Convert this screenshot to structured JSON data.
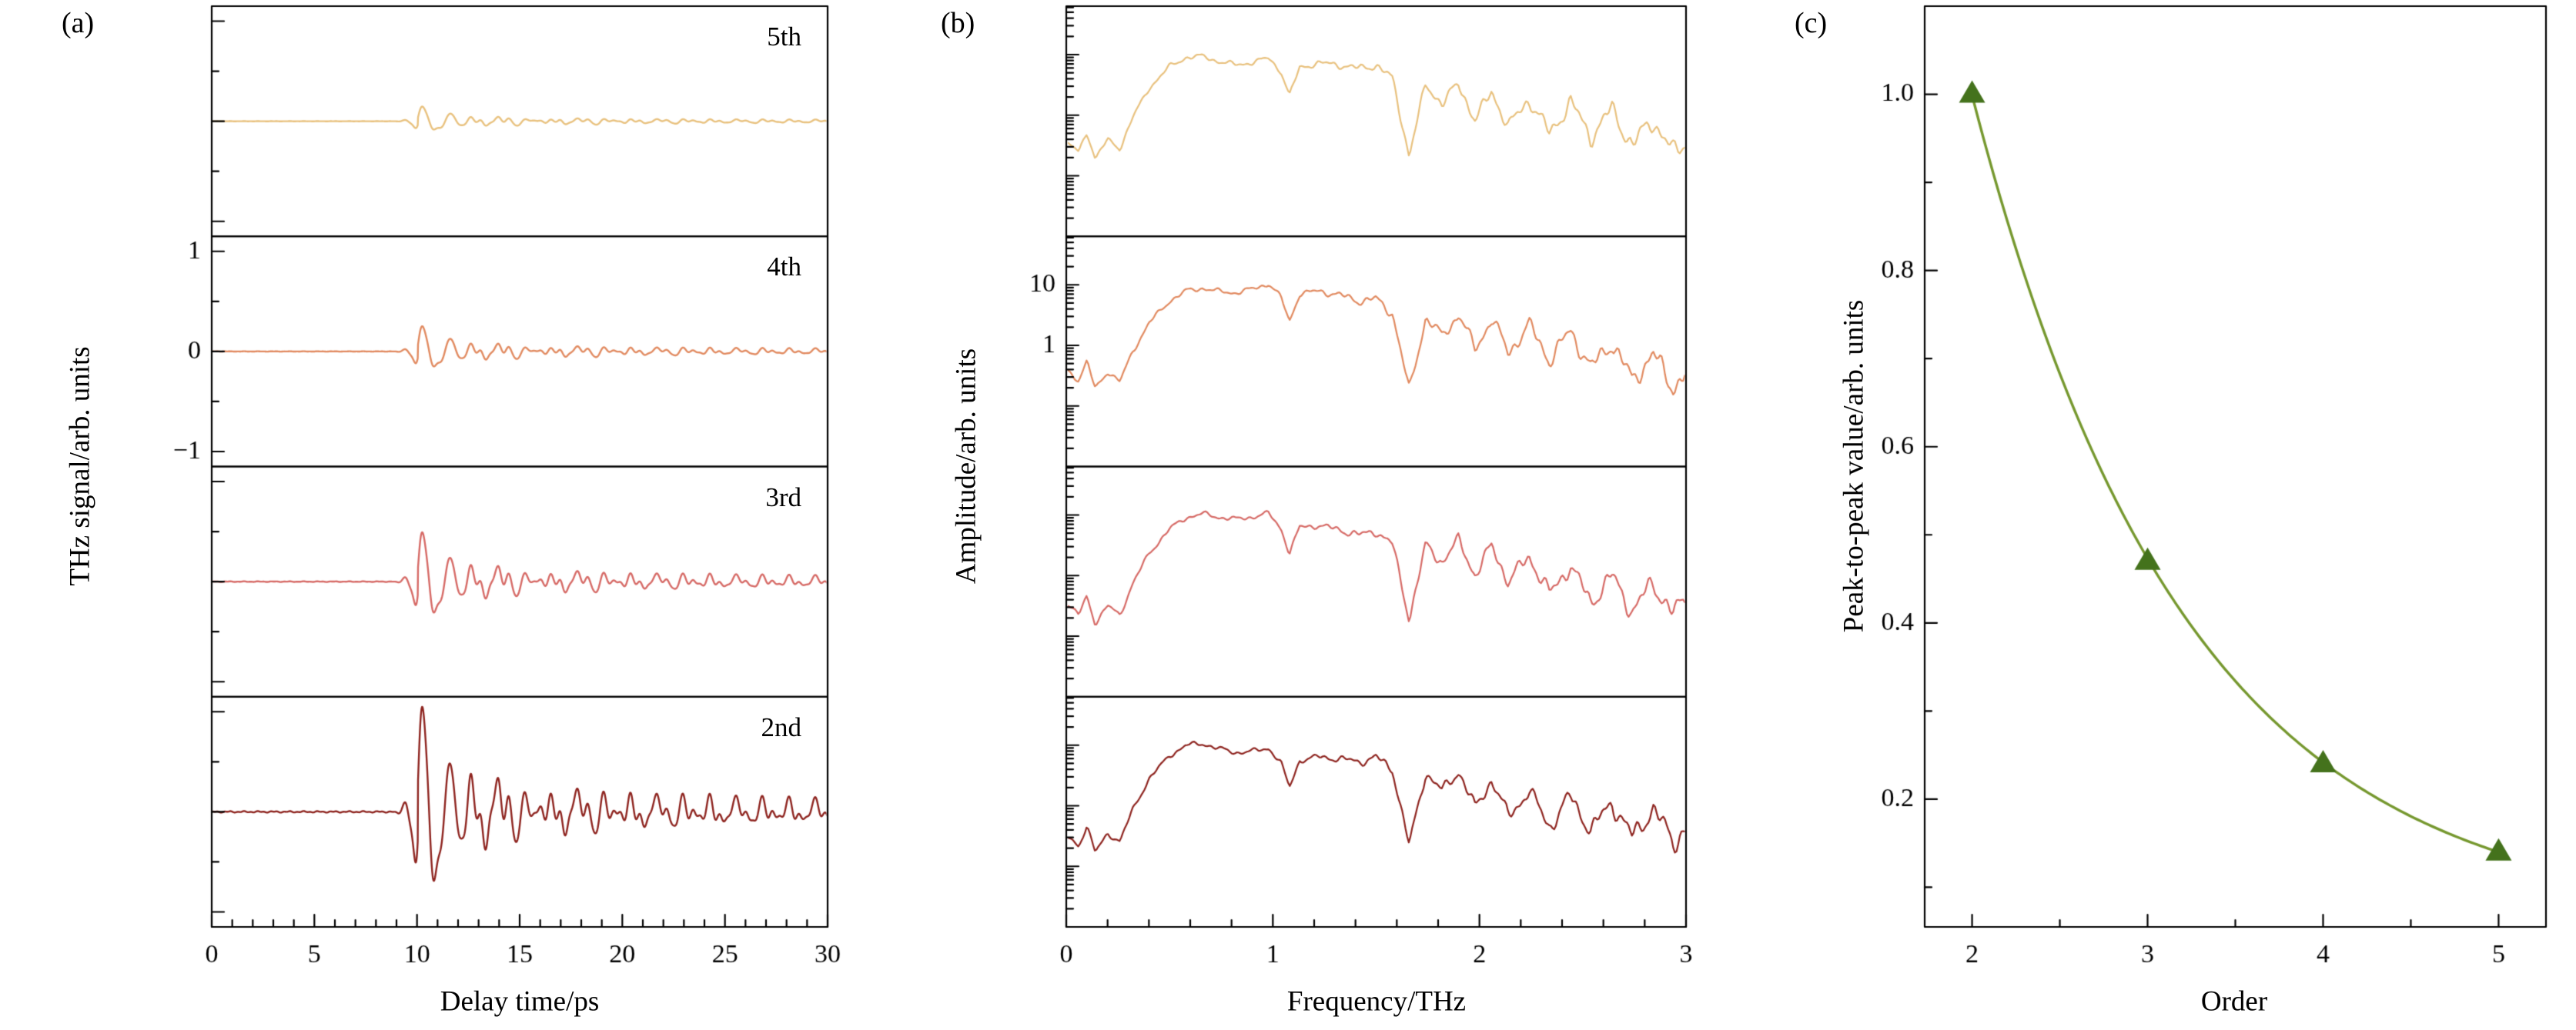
{
  "figure": {
    "background": "#ffffff",
    "panels": [
      {
        "letter": "(a)"
      },
      {
        "letter": "(b)"
      },
      {
        "letter": "(c)"
      }
    ]
  },
  "chart_data": [
    {
      "id": "a",
      "type": "line",
      "xlabel": "Delay time/ps",
      "ylabel": "THz signal/arb. units",
      "xlim": [
        0,
        30
      ],
      "xticks": [
        0,
        5,
        10,
        15,
        20,
        25,
        30
      ],
      "xtick_labels": [
        "0",
        "5",
        "10",
        "15",
        "20",
        "25",
        "30"
      ],
      "x_minor_step": 1,
      "ylim": [
        -1.15,
        1.15
      ],
      "yticks": [
        1,
        0,
        -1
      ],
      "ytick_labels": [
        "1",
        "0",
        "−1"
      ],
      "y_minor_step": 0.5,
      "grid": false,
      "burst_onset_ps": 9.5,
      "carrier_freq_THz": 1.1,
      "subplots": [
        {
          "label": "5th",
          "color": "#e8c17e",
          "peak_to_peak": 0.14
        },
        {
          "label": "4th",
          "color": "#e18a60",
          "peak_to_peak": 0.24
        },
        {
          "label": "3rd",
          "color": "#d66a66",
          "peak_to_peak": 0.47
        },
        {
          "label": "2nd",
          "color": "#8e241f",
          "peak_to_peak": 1.0
        }
      ]
    },
    {
      "id": "b",
      "type": "line",
      "yscale": "log",
      "xlabel": "Frequency/THz",
      "ylabel": "Amplitude/arb. units",
      "xlim": [
        0,
        3
      ],
      "xticks": [
        0,
        1,
        2,
        3
      ],
      "xtick_labels": [
        "0",
        "1",
        "2",
        "3"
      ],
      "x_minor_step": 0.2,
      "ytick_values": [
        10,
        1
      ],
      "ytick_labels": [
        "10",
        "1"
      ],
      "log_top_exponent": 1.8,
      "log_bottom_exponent": -2.0,
      "grid": false,
      "envelope_log10": [
        [
          0.0,
          -0.45
        ],
        [
          0.06,
          -0.62
        ],
        [
          0.1,
          -0.3
        ],
        [
          0.14,
          -0.75
        ],
        [
          0.2,
          -0.45
        ],
        [
          0.26,
          -0.6
        ],
        [
          0.32,
          -0.1
        ],
        [
          0.4,
          0.4
        ],
        [
          0.5,
          0.78
        ],
        [
          0.58,
          0.95
        ],
        [
          0.66,
          0.99
        ],
        [
          0.74,
          0.92
        ],
        [
          0.82,
          0.88
        ],
        [
          0.9,
          0.92
        ],
        [
          0.98,
          0.99
        ],
        [
          1.04,
          0.75
        ],
        [
          1.08,
          0.35
        ],
        [
          1.13,
          0.8
        ],
        [
          1.22,
          0.85
        ],
        [
          1.32,
          0.8
        ],
        [
          1.42,
          0.72
        ],
        [
          1.5,
          0.78
        ],
        [
          1.58,
          0.55
        ],
        [
          1.66,
          -0.7
        ],
        [
          1.74,
          0.5
        ],
        [
          1.82,
          0.2
        ],
        [
          1.9,
          0.55
        ],
        [
          1.98,
          -0.05
        ],
        [
          2.06,
          0.45
        ],
        [
          2.14,
          -0.15
        ],
        [
          2.24,
          0.3
        ],
        [
          2.34,
          -0.3
        ],
        [
          2.44,
          0.2
        ],
        [
          2.54,
          -0.4
        ],
        [
          2.64,
          0.05
        ],
        [
          2.74,
          -0.55
        ],
        [
          2.84,
          -0.1
        ],
        [
          2.94,
          -0.65
        ],
        [
          3.0,
          -0.4
        ]
      ],
      "subplots": [
        {
          "order": "5th",
          "color": "#e8c17e"
        },
        {
          "order": "4th",
          "color": "#e18a60"
        },
        {
          "order": "3rd",
          "color": "#d66a66"
        },
        {
          "order": "2nd",
          "color": "#8e241f"
        }
      ]
    },
    {
      "id": "c",
      "type": "scatter",
      "xlabel": "Order",
      "ylabel": "Peak-to-peak value/arb. units",
      "x": [
        2,
        3,
        4,
        5
      ],
      "y": [
        1.0,
        0.47,
        0.24,
        0.14
      ],
      "xticks": [
        2,
        3,
        4,
        5
      ],
      "xtick_labels": [
        "2",
        "3",
        "4",
        "5"
      ],
      "x_minor_step": 0.5,
      "yticks": [
        0.2,
        0.4,
        0.6,
        0.8,
        1.0
      ],
      "ytick_labels": [
        "0.2",
        "0.4",
        "0.6",
        "0.8",
        "1.0"
      ],
      "y_minor_step": 0.1,
      "xlim": [
        1.73,
        5.27
      ],
      "ylim": [
        0.055,
        1.1
      ],
      "grid": false,
      "line_color": "#76982f",
      "marker": "triangle-up",
      "marker_color": "#44721c",
      "fit": {
        "type": "exponential",
        "a": 4.85,
        "b": 0.821,
        "c": 0.06
      }
    }
  ]
}
